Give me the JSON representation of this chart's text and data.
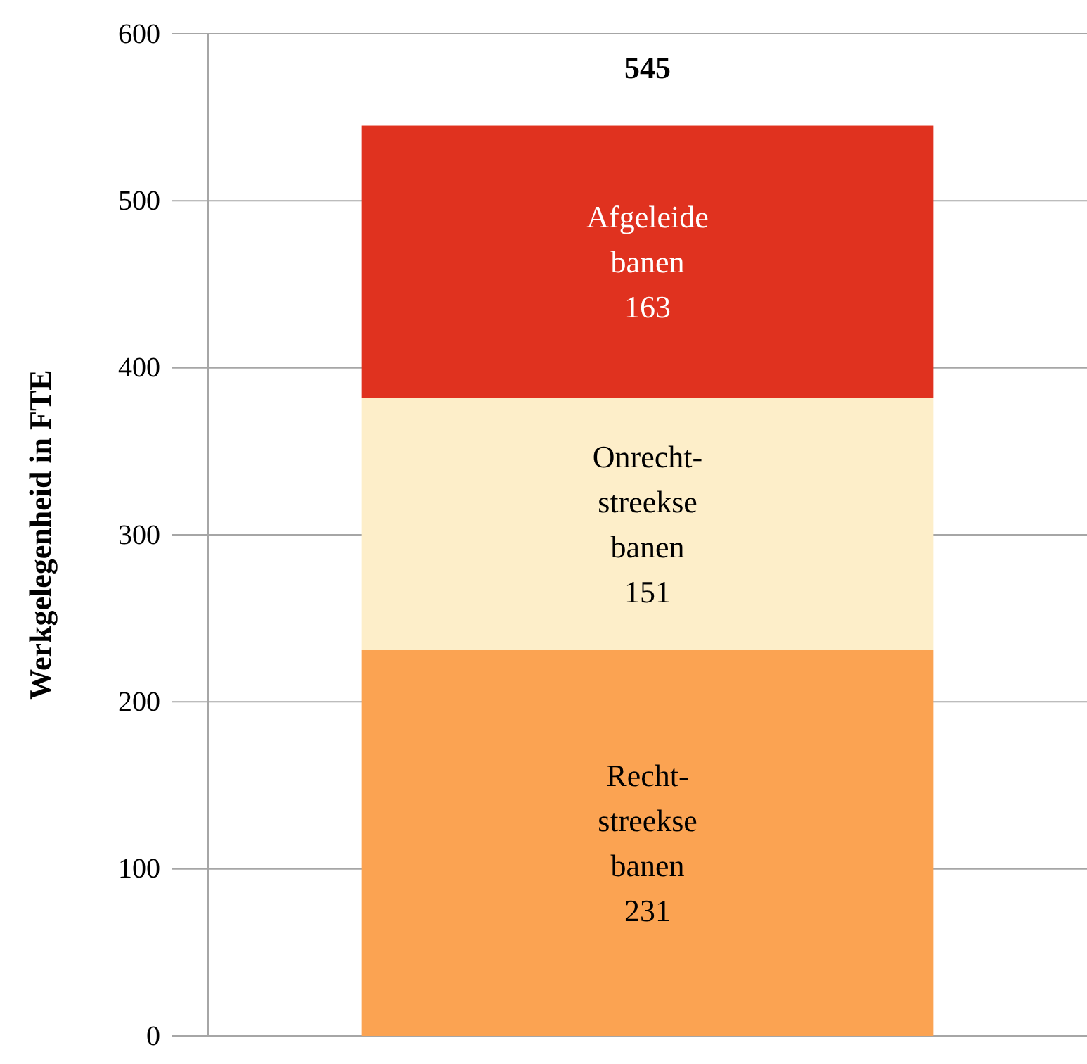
{
  "chart_data": {
    "type": "bar",
    "ylabel": "Werkgelegenheid in FTE",
    "categories": [
      null
    ],
    "stacked": true,
    "data_labels": true,
    "totals": [
      "545"
    ],
    "series": [
      {
        "name": "Recht-streekse banen",
        "color": "#fba352",
        "values": [
          231
        ]
      },
      {
        "name": "Onrecht-streekse banen",
        "color": "#fdeec9",
        "values": [
          151
        ]
      },
      {
        "name": "Afgeleide banen",
        "color": "#e0321f",
        "values": [
          163
        ]
      }
    ],
    "ylim": [
      0,
      600
    ],
    "yticks": [
      0,
      100,
      200,
      300,
      400,
      500,
      600
    ],
    "grid": "y",
    "legend": false
  }
}
